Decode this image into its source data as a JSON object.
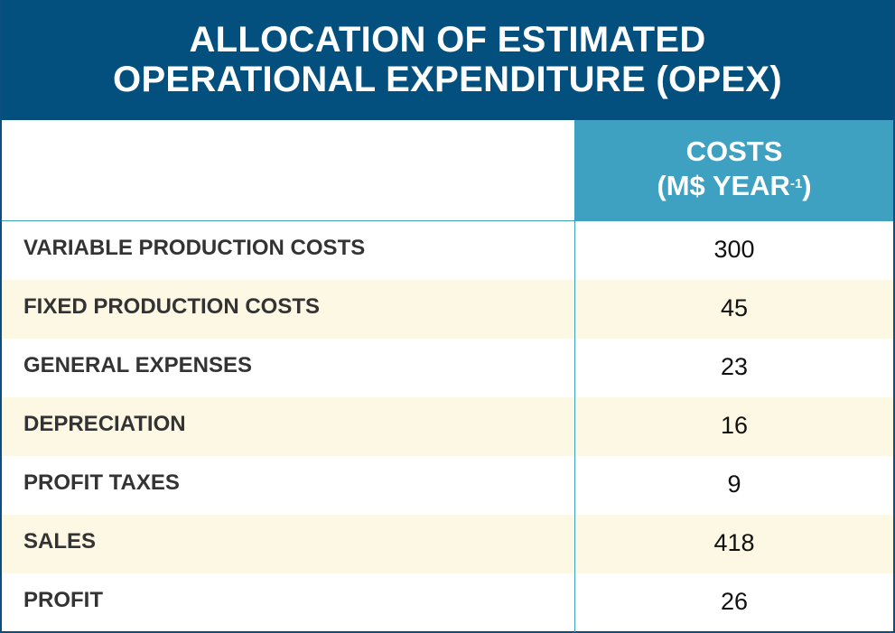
{
  "title": {
    "line1": "ALLOCATION OF ESTIMATED",
    "line2": "OPERATIONAL EXPENDITURE (OPEX)"
  },
  "header": {
    "costs": "COSTS",
    "unit_prefix": "(M$ YEAR",
    "unit_sup": "-1",
    "unit_suffix": ")"
  },
  "rows": [
    {
      "label": "VARIABLE PRODUCTION COSTS",
      "value": "300"
    },
    {
      "label": "FIXED PRODUCTION COSTS",
      "value": "45"
    },
    {
      "label": "GENERAL EXPENSES",
      "value": "23"
    },
    {
      "label": "DEPRECIATION",
      "value": "16"
    },
    {
      "label": "PROFIT TAXES",
      "value": "9"
    },
    {
      "label": "SALES",
      "value": "418"
    },
    {
      "label": "PROFIT",
      "value": "26"
    }
  ],
  "colors": {
    "title_bg": "#03507f",
    "header_bg": "#3fa1c2",
    "alt_row": "#fdf8e4"
  }
}
